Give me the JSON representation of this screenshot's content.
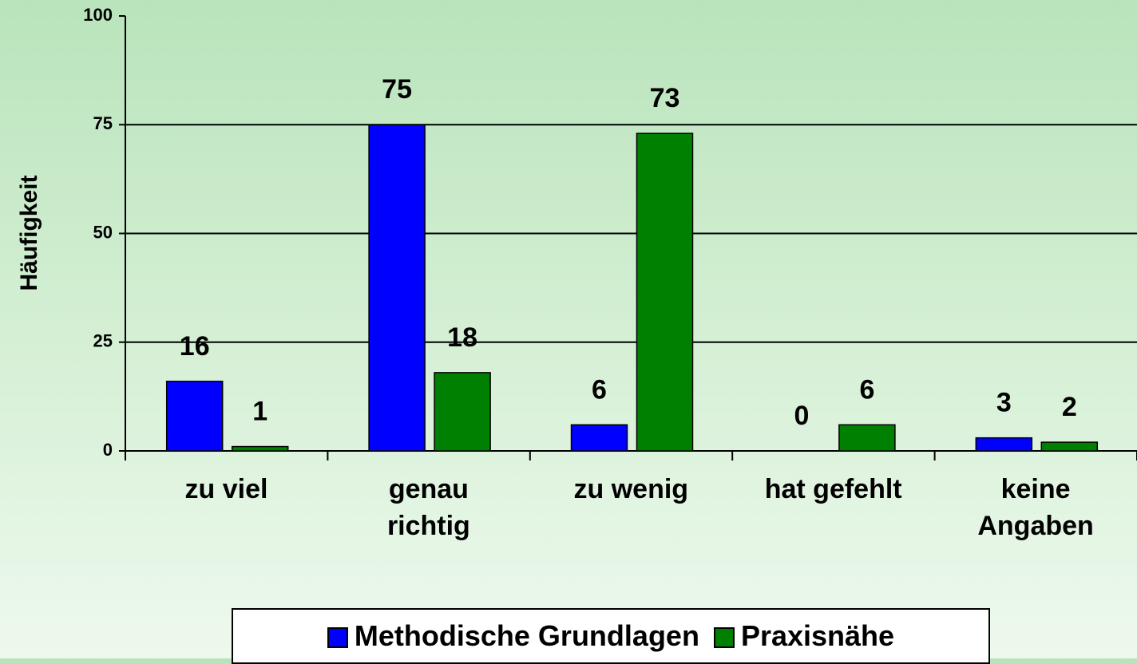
{
  "chart_data": {
    "type": "bar",
    "y_label": "Häufigkeit",
    "categories": [
      "zu viel",
      "genau\nrichtig",
      "zu wenig",
      "hat gefehlt",
      "keine\nAngaben"
    ],
    "series": [
      {
        "name": "Methodische Grundlagen",
        "color": "#0000ff",
        "values": [
          16,
          75,
          6,
          0,
          3
        ]
      },
      {
        "name": "Praxisnähe",
        "color": "#008000",
        "values": [
          1,
          18,
          73,
          6,
          2
        ]
      }
    ],
    "ylim": [
      0,
      100
    ],
    "yticks": [
      0,
      25,
      50,
      75,
      100
    ],
    "grid": true,
    "legend": "bottom"
  }
}
